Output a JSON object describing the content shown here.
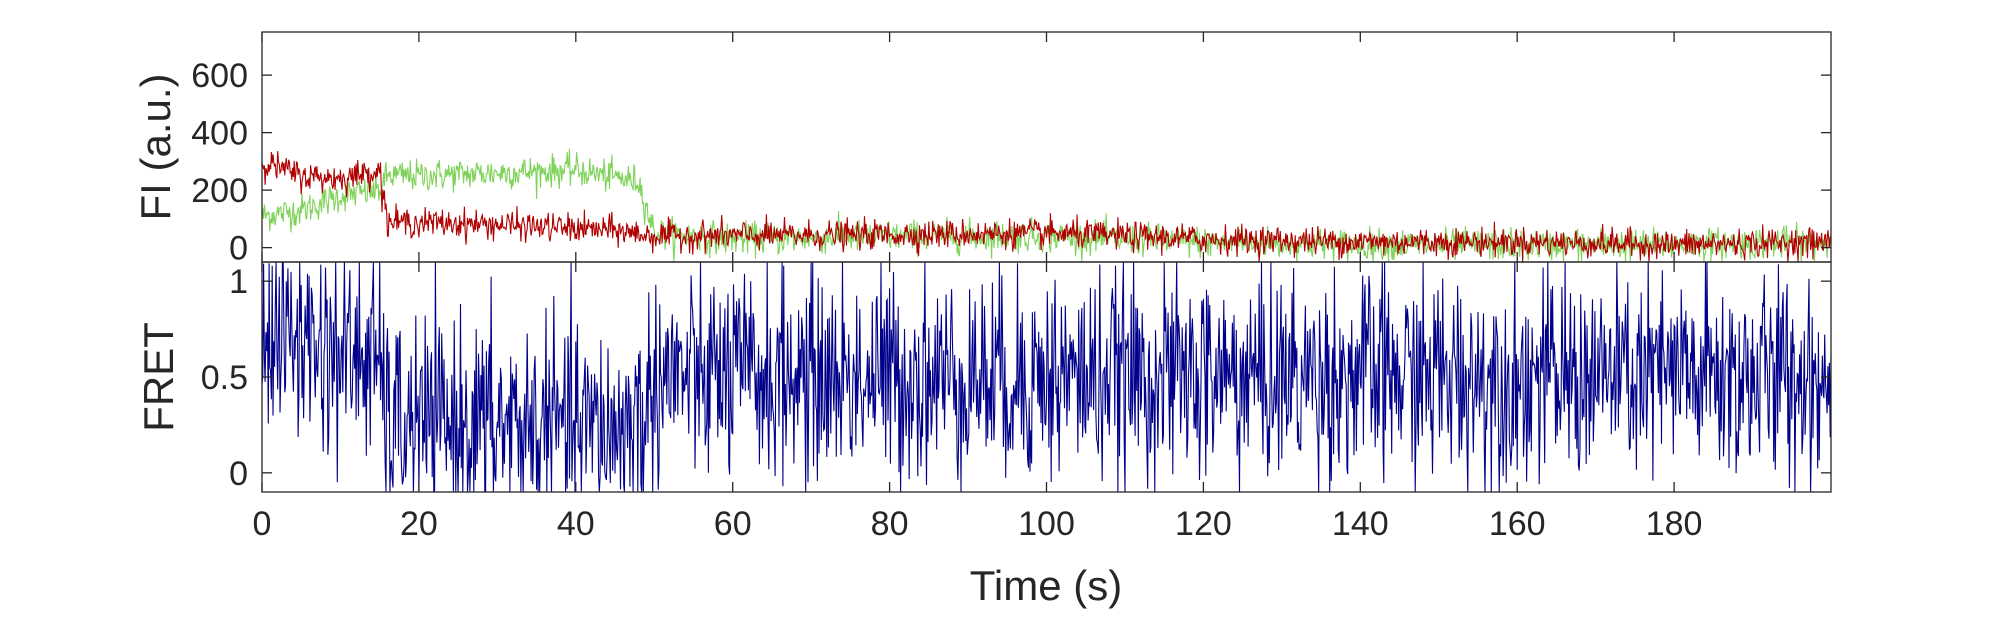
{
  "chart_data": [
    {
      "id": "intensity",
      "type": "line",
      "title": "",
      "xlabel": "",
      "ylabel": "FI (a.u.)",
      "xlim": [
        0,
        200
      ],
      "ylim": [
        -50,
        750
      ],
      "yticks": [
        0,
        200,
        400,
        600
      ],
      "ytick_labels": [
        "0",
        "200",
        "400",
        "600"
      ],
      "grid": false,
      "legend": "none",
      "colors": {
        "donor": "#7fd35a",
        "acceptor": "#b00000"
      },
      "series": [
        {
          "key": "donor",
          "keypoints": [
            {
              "x": 0,
              "y": 110
            },
            {
              "x": 5,
              "y": 130
            },
            {
              "x": 10,
              "y": 180
            },
            {
              "x": 15,
              "y": 200
            },
            {
              "x": 16,
              "y": 250
            },
            {
              "x": 20,
              "y": 250
            },
            {
              "x": 30,
              "y": 260
            },
            {
              "x": 40,
              "y": 270
            },
            {
              "x": 48,
              "y": 230
            },
            {
              "x": 50,
              "y": 50
            },
            {
              "x": 60,
              "y": 30
            },
            {
              "x": 80,
              "y": 40
            },
            {
              "x": 100,
              "y": 40
            },
            {
              "x": 120,
              "y": 20
            },
            {
              "x": 140,
              "y": 10
            },
            {
              "x": 160,
              "y": 10
            },
            {
              "x": 180,
              "y": 10
            },
            {
              "x": 200,
              "y": 20
            }
          ],
          "noise": 50
        },
        {
          "key": "acceptor",
          "keypoints": [
            {
              "x": 0,
              "y": 300
            },
            {
              "x": 5,
              "y": 250
            },
            {
              "x": 10,
              "y": 240
            },
            {
              "x": 15,
              "y": 270
            },
            {
              "x": 16,
              "y": 90
            },
            {
              "x": 30,
              "y": 80
            },
            {
              "x": 45,
              "y": 60
            },
            {
              "x": 50,
              "y": 40
            },
            {
              "x": 80,
              "y": 45
            },
            {
              "x": 100,
              "y": 50
            },
            {
              "x": 120,
              "y": 30
            },
            {
              "x": 140,
              "y": 20
            },
            {
              "x": 160,
              "y": 20
            },
            {
              "x": 180,
              "y": 10
            },
            {
              "x": 200,
              "y": 20
            }
          ],
          "noise": 45
        }
      ]
    },
    {
      "id": "fret",
      "type": "line",
      "title": "",
      "xlabel": "Time (s)",
      "ylabel": "FRET",
      "xlim": [
        0,
        200
      ],
      "ylim": [
        -0.1,
        1.1
      ],
      "xticks": [
        0,
        20,
        40,
        60,
        80,
        100,
        120,
        140,
        160,
        180
      ],
      "xtick_labels": [
        "0",
        "20",
        "40",
        "60",
        "80",
        "100",
        "120",
        "140",
        "160",
        "180"
      ],
      "yticks": [
        0,
        0.5,
        1
      ],
      "ytick_labels": [
        "0",
        "0.5",
        "1"
      ],
      "grid": false,
      "legend": "none",
      "colors": {
        "fret": "#00008b"
      },
      "series": [
        {
          "key": "fret",
          "keypoints": [
            {
              "x": 0,
              "y": 0.75
            },
            {
              "x": 5,
              "y": 0.7
            },
            {
              "x": 10,
              "y": 0.62
            },
            {
              "x": 15,
              "y": 0.58
            },
            {
              "x": 16,
              "y": 0.25
            },
            {
              "x": 30,
              "y": 0.25
            },
            {
              "x": 45,
              "y": 0.22
            },
            {
              "x": 49,
              "y": 0.3
            },
            {
              "x": 50,
              "y": 0.5
            },
            {
              "x": 200,
              "y": 0.5
            }
          ],
          "noise": 0.5
        }
      ]
    }
  ]
}
